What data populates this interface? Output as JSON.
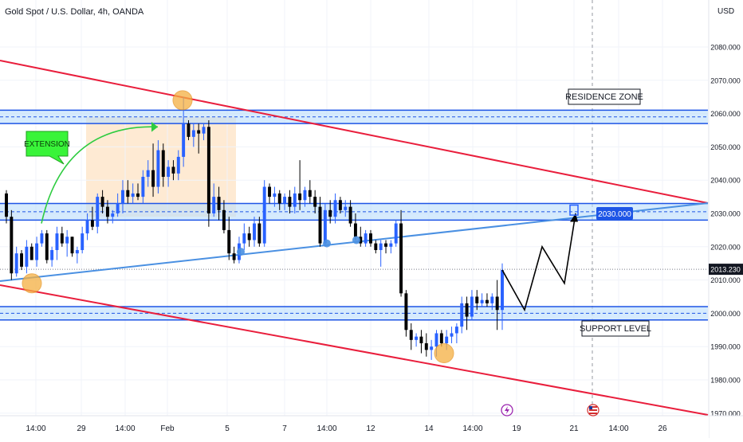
{
  "header": {
    "title": "Gold Spot / U.S. Dollar, 4h, OANDA",
    "currency": "USD"
  },
  "chart_data": {
    "type": "candlestick",
    "y_ticks": [
      2080,
      2070,
      2060,
      2050,
      2040,
      2030,
      2020,
      2010,
      2000,
      1990,
      1980,
      1970
    ],
    "ylim": [
      1966.5,
      2092
    ],
    "x_ticks": [
      "14:00",
      "29",
      "14:00",
      "Feb",
      "5",
      "7",
      "14:00",
      "12",
      "14",
      "14:00",
      "19",
      "21",
      "14:00",
      "26"
    ],
    "current_price": "2013.230",
    "target_price": "2030.000",
    "candles": [
      [
        2036,
        2037,
        2027,
        2029
      ],
      [
        2029,
        2031,
        2010,
        2012
      ],
      [
        2012,
        2020,
        2011,
        2018
      ],
      [
        2018,
        2019,
        2013,
        2014
      ],
      [
        2014,
        2022,
        2012,
        2020
      ],
      [
        2020,
        2021,
        2016,
        2016
      ],
      [
        2016,
        2023,
        2014,
        2021
      ],
      [
        2021,
        2025,
        2020,
        2024
      ],
      [
        2024,
        2025,
        2015,
        2016
      ],
      [
        2016,
        2020,
        2014,
        2019
      ],
      [
        2019,
        2026,
        2016,
        2024
      ],
      [
        2024,
        2026,
        2020,
        2021
      ],
      [
        2021,
        2025,
        2017,
        2023
      ],
      [
        2023,
        2023,
        2017,
        2018
      ],
      [
        2018,
        2020,
        2015,
        2019
      ],
      [
        2019,
        2026,
        2018,
        2024
      ],
      [
        2024,
        2030,
        2022,
        2028
      ],
      [
        2028,
        2032,
        2025,
        2026
      ],
      [
        2026,
        2036,
        2024,
        2035
      ],
      [
        2035,
        2037,
        2030,
        2032
      ],
      [
        2032,
        2034,
        2027,
        2029
      ],
      [
        2029,
        2031,
        2027,
        2030
      ],
      [
        2030,
        2036,
        2029,
        2033
      ],
      [
        2033,
        2040,
        2030,
        2037
      ],
      [
        2037,
        2040,
        2033,
        2035
      ],
      [
        2035,
        2039,
        2033,
        2036
      ],
      [
        2036,
        2039,
        2034,
        2035
      ],
      [
        2035,
        2043,
        2033,
        2041
      ],
      [
        2041,
        2046,
        2038,
        2043
      ],
      [
        2043,
        2051,
        2035,
        2038
      ],
      [
        2038,
        2052,
        2036,
        2049
      ],
      [
        2049,
        2051,
        2038,
        2041
      ],
      [
        2041,
        2046,
        2038,
        2044
      ],
      [
        2044,
        2046,
        2040,
        2042
      ],
      [
        2042,
        2049,
        2040,
        2047
      ],
      [
        2047,
        2065,
        2044,
        2057
      ],
      [
        2057,
        2058,
        2052,
        2053
      ],
      [
        2053,
        2057,
        2050,
        2055
      ],
      [
        2055,
        2057,
        2048,
        2054
      ],
      [
        2054,
        2057,
        2052,
        2056
      ],
      [
        2056,
        2058,
        2026,
        2030
      ],
      [
        2030,
        2039,
        2029,
        2035
      ],
      [
        2035,
        2038,
        2028,
        2031
      ],
      [
        2031,
        2034,
        2024,
        2025
      ],
      [
        2025,
        2029,
        2016,
        2018
      ],
      [
        2018,
        2020,
        2015,
        2016
      ],
      [
        2016,
        2023,
        2015,
        2021
      ],
      [
        2021,
        2027,
        2019,
        2024
      ],
      [
        2024,
        2026,
        2020,
        2022
      ],
      [
        2022,
        2029,
        2020,
        2027
      ],
      [
        2027,
        2029,
        2020,
        2021
      ],
      [
        2021,
        2040,
        2020,
        2038
      ],
      [
        2038,
        2039,
        2033,
        2035
      ],
      [
        2035,
        2038,
        2032,
        2036
      ],
      [
        2036,
        2037,
        2031,
        2033
      ],
      [
        2033,
        2036,
        2031,
        2035
      ],
      [
        2035,
        2037,
        2030,
        2032
      ],
      [
        2032,
        2038,
        2030,
        2036
      ],
      [
        2036,
        2046,
        2031,
        2034
      ],
      [
        2034,
        2038,
        2032,
        2037
      ],
      [
        2037,
        2040,
        2033,
        2035
      ],
      [
        2035,
        2037,
        2030,
        2032
      ],
      [
        2032,
        2035,
        2020,
        2021
      ],
      [
        2021,
        2033,
        2020,
        2031
      ],
      [
        2031,
        2034,
        2027,
        2029
      ],
      [
        2029,
        2036,
        2027,
        2034
      ],
      [
        2034,
        2035,
        2030,
        2031
      ],
      [
        2031,
        2034,
        2029,
        2032
      ],
      [
        2032,
        2034,
        2026,
        2027
      ],
      [
        2027,
        2030,
        2022,
        2023
      ],
      [
        2023,
        2026,
        2020,
        2021
      ],
      [
        2021,
        2025,
        2020,
        2024
      ],
      [
        2024,
        2025,
        2020,
        2021
      ],
      [
        2021,
        2022,
        2018,
        2019
      ],
      [
        2019,
        2022,
        2014,
        2021
      ],
      [
        2021,
        2022,
        2018,
        2020
      ],
      [
        2020,
        2022,
        2018,
        2021
      ],
      [
        2021,
        2028,
        2020,
        2027
      ],
      [
        2027,
        2031,
        2005,
        2006
      ],
      [
        2006,
        2007,
        1993,
        1995
      ],
      [
        1995,
        1997,
        1989,
        1992
      ],
      [
        1992,
        1994,
        1990,
        1993
      ],
      [
        1993,
        1995,
        1988,
        1991
      ],
      [
        1991,
        1994,
        1987,
        1989
      ],
      [
        1989,
        1992,
        1986,
        1990
      ],
      [
        1990,
        1995,
        1987,
        1994
      ],
      [
        1994,
        1995,
        1990,
        1991
      ],
      [
        1991,
        1995,
        1989,
        1993
      ],
      [
        1993,
        1996,
        1991,
        1994
      ],
      [
        1994,
        1997,
        1991,
        1996
      ],
      [
        1996,
        2005,
        1994,
        2003
      ],
      [
        2003,
        2005,
        1995,
        1999
      ],
      [
        1999,
        2007,
        1998,
        2005
      ],
      [
        2005,
        2007,
        2001,
        2003
      ],
      [
        2003,
        2006,
        2002,
        2004
      ],
      [
        2004,
        2006,
        2002,
        2003
      ],
      [
        2003,
        2006,
        2001,
        2005
      ],
      [
        2005,
        2010,
        1995,
        2001
      ],
      [
        2001,
        2015,
        1995,
        2013
      ]
    ]
  },
  "annotations": {
    "extension": "EXTENSION",
    "residence_zone": "RESIDENCE ZONE",
    "support_level": "SUPPORT LEVEL"
  },
  "colors": {
    "up": "#2962ff",
    "down": "#000000",
    "trendline": "#e91e3c",
    "zone_fill": "#bbdefb",
    "zone_border": "#1e55e6",
    "label_green": "#39f439",
    "orange_marker": "#f5b041"
  }
}
